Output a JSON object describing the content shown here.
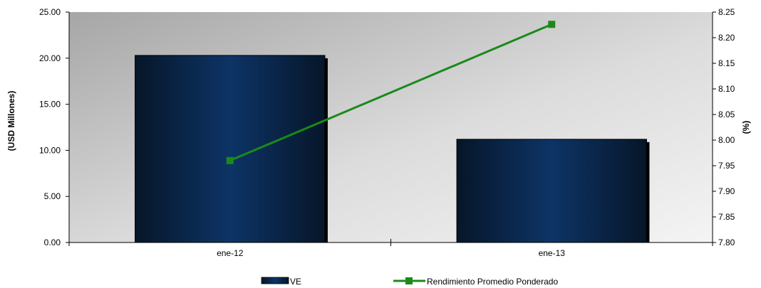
{
  "chart_data": {
    "type": "bar",
    "categories": [
      "ene-12",
      "ene-13"
    ],
    "series": [
      {
        "name": "VE",
        "type": "bar",
        "axis": "left",
        "values": [
          20.3,
          11.2
        ]
      },
      {
        "name": "Rendimiento Promedio Ponderado",
        "type": "line",
        "axis": "right",
        "values": [
          7.96,
          8.226
        ]
      }
    ],
    "ylabel": "(USD Millones)",
    "y2label": "(%)",
    "ylim": [
      0,
      25
    ],
    "y2lim": [
      7.8,
      8.25
    ],
    "yticks": [
      "0.00",
      "5.00",
      "10.00",
      "15.00",
      "20.00",
      "25.00"
    ],
    "y2ticks": [
      "7.80",
      "7.85",
      "7.90",
      "7.95",
      "8.00",
      "8.05",
      "8.10",
      "8.15",
      "8.20",
      "8.25"
    ],
    "grid": false,
    "legend_position": "bottom",
    "colors": {
      "bar": "#0a2e5c",
      "line": "#1a8a1a"
    }
  }
}
